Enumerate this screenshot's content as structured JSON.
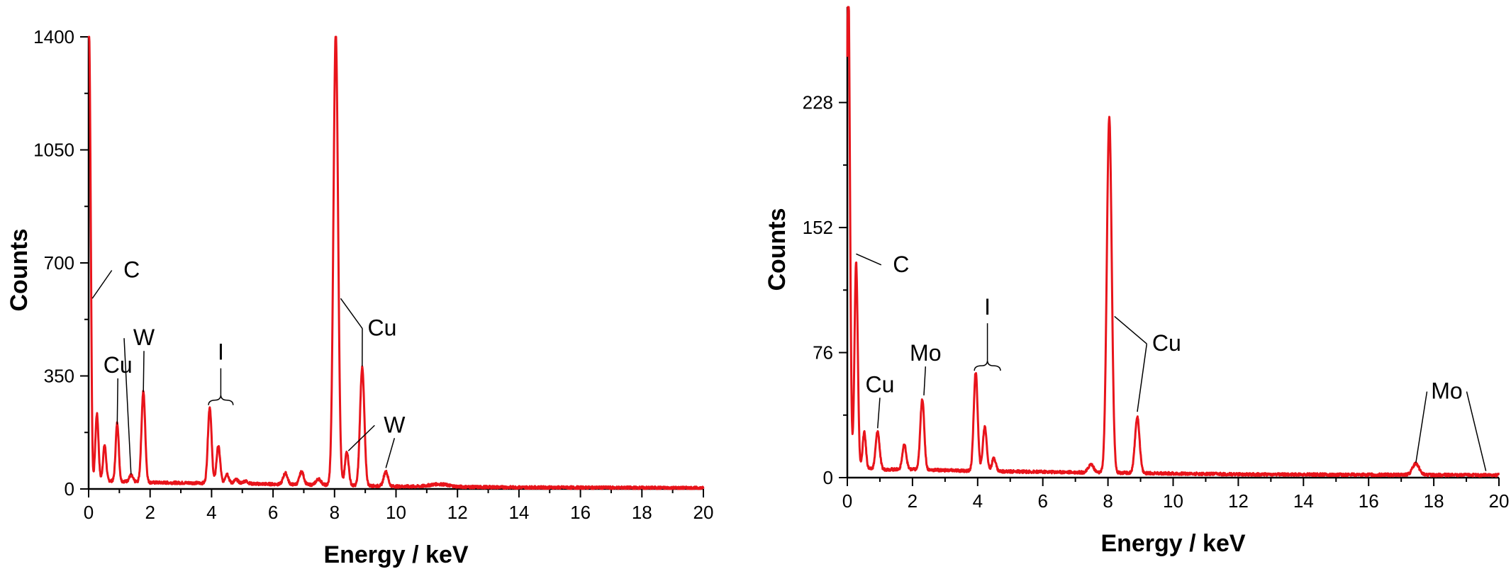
{
  "colors": {
    "spectrum": "#e8141b",
    "axes": "#000000"
  },
  "chart_data": [
    {
      "type": "line",
      "xlabel": "Energy / keV",
      "ylabel": "Counts",
      "xlim": [
        0,
        20
      ],
      "ylim": [
        0,
        1400
      ],
      "xticks": [
        "0",
        "2",
        "4",
        "6",
        "8",
        "10",
        "12",
        "14",
        "16",
        "18",
        "20"
      ],
      "yticks": [
        "0",
        "350",
        "700",
        "1050",
        "1400"
      ],
      "grid": false,
      "series": [
        {
          "peaks": [
            {
              "x": 0.0,
              "y": 1240,
              "w": 0.04
            },
            {
              "x": 0.06,
              "y": 560,
              "w": 0.035
            },
            {
              "x": 0.27,
              "y": 205,
              "w": 0.05
            },
            {
              "x": 0.52,
              "y": 110,
              "w": 0.05
            },
            {
              "x": 0.93,
              "y": 180,
              "w": 0.05
            },
            {
              "x": 1.38,
              "y": 20,
              "w": 0.06
            },
            {
              "x": 1.78,
              "y": 280,
              "w": 0.06
            },
            {
              "x": 3.94,
              "y": 235,
              "w": 0.06
            },
            {
              "x": 4.22,
              "y": 115,
              "w": 0.06
            },
            {
              "x": 4.5,
              "y": 30,
              "w": 0.06
            },
            {
              "x": 4.8,
              "y": 12,
              "w": 0.07
            },
            {
              "x": 5.1,
              "y": 8,
              "w": 0.08
            },
            {
              "x": 6.4,
              "y": 35,
              "w": 0.07
            },
            {
              "x": 6.93,
              "y": 40,
              "w": 0.07
            },
            {
              "x": 7.48,
              "y": 18,
              "w": 0.08
            },
            {
              "x": 8.04,
              "y": 1400,
              "w": 0.075
            },
            {
              "x": 8.4,
              "y": 105,
              "w": 0.06
            },
            {
              "x": 8.9,
              "y": 365,
              "w": 0.07
            },
            {
              "x": 9.67,
              "y": 45,
              "w": 0.07
            },
            {
              "x": 11.4,
              "y": 8,
              "w": 0.3
            }
          ],
          "baseline": [
            {
              "x": 0,
              "y": 28
            },
            {
              "x": 1,
              "y": 24
            },
            {
              "x": 2,
              "y": 20
            },
            {
              "x": 4,
              "y": 18
            },
            {
              "x": 6,
              "y": 15
            },
            {
              "x": 8,
              "y": 12
            },
            {
              "x": 10,
              "y": 8
            },
            {
              "x": 14,
              "y": 5
            },
            {
              "x": 20,
              "y": 3
            }
          ]
        }
      ],
      "annotations": [
        {
          "text": "C",
          "point": {
            "x": 0.12,
            "y": 590
          },
          "label": {
            "x": 1.4,
            "y": 655
          }
        },
        {
          "text": "Cu",
          "point": {
            "x": 0.93,
            "y": 200
          },
          "label": {
            "x": 0.95,
            "y": 360
          }
        },
        {
          "text": "W",
          "point": {
            "x": 1.38,
            "y": 45
          },
          "label": {
            "x": 1.8,
            "y": 445
          }
        },
        {
          "text": "W",
          "point": {
            "x": 1.78,
            "y": 300
          },
          "label": null
        },
        {
          "text": "I",
          "point": {
            "x": 4.3,
            "y": 275
          },
          "label": {
            "x": 4.3,
            "y": 400
          },
          "brace": [
            3.9,
            4.7
          ]
        },
        {
          "text": "Cu",
          "point": {
            "x": 8.2,
            "y": 590
          },
          "label": {
            "x": 9.55,
            "y": 475
          }
        },
        {
          "text": "Cu",
          "point": {
            "x": 8.9,
            "y": 380
          },
          "label": null
        },
        {
          "text": "W",
          "point": {
            "x": 8.45,
            "y": 118
          },
          "label": {
            "x": 9.95,
            "y": 175
          }
        },
        {
          "text": "W",
          "point": {
            "x": 9.67,
            "y": 65
          },
          "label": null
        }
      ]
    },
    {
      "type": "line",
      "xlabel": "Energy / keV",
      "ylabel": "Counts",
      "xlim": [
        0,
        20
      ],
      "ylim": [
        0,
        286
      ],
      "xticks": [
        "0",
        "2",
        "4",
        "6",
        "8",
        "10",
        "12",
        "14",
        "16",
        "18",
        "20"
      ],
      "yticks": [
        "0",
        "76",
        "152",
        "228"
      ],
      "grid": false,
      "series": [
        {
          "peaks": [
            {
              "x": 0.03,
              "y": 300,
              "w": 0.05
            },
            {
              "x": 0.27,
              "y": 125,
              "w": 0.05
            },
            {
              "x": 0.52,
              "y": 22,
              "w": 0.05
            },
            {
              "x": 0.93,
              "y": 23,
              "w": 0.06
            },
            {
              "x": 1.75,
              "y": 15,
              "w": 0.06
            },
            {
              "x": 2.3,
              "y": 43,
              "w": 0.06
            },
            {
              "x": 3.94,
              "y": 60,
              "w": 0.06
            },
            {
              "x": 4.22,
              "y": 27,
              "w": 0.06
            },
            {
              "x": 4.5,
              "y": 8,
              "w": 0.06
            },
            {
              "x": 7.48,
              "y": 5,
              "w": 0.08
            },
            {
              "x": 8.04,
              "y": 216,
              "w": 0.075
            },
            {
              "x": 8.9,
              "y": 34,
              "w": 0.07
            },
            {
              "x": 17.45,
              "y": 7,
              "w": 0.1
            }
          ],
          "baseline": [
            {
              "x": 0,
              "y": 6
            },
            {
              "x": 1,
              "y": 5
            },
            {
              "x": 2,
              "y": 5
            },
            {
              "x": 4,
              "y": 4
            },
            {
              "x": 8,
              "y": 3
            },
            {
              "x": 12,
              "y": 2
            },
            {
              "x": 20,
              "y": 1.5
            }
          ]
        }
      ],
      "annotations": [
        {
          "text": "C",
          "point": {
            "x": 0.27,
            "y": 136
          },
          "label": {
            "x": 1.65,
            "y": 125
          }
        },
        {
          "text": "Cu",
          "point": {
            "x": 0.93,
            "y": 30
          },
          "label": {
            "x": 1.0,
            "y": 52
          }
        },
        {
          "text": "Mo",
          "point": {
            "x": 2.35,
            "y": 50
          },
          "label": {
            "x": 2.4,
            "y": 71
          }
        },
        {
          "text": "I",
          "point": {
            "x": 4.3,
            "y": 68
          },
          "label": {
            "x": 4.3,
            "y": 99
          },
          "brace": [
            3.9,
            4.7
          ]
        },
        {
          "text": "Cu",
          "point": {
            "x": 8.2,
            "y": 98
          },
          "label": {
            "x": 9.8,
            "y": 77
          }
        },
        {
          "text": "Cu",
          "point": {
            "x": 8.9,
            "y": 40
          },
          "label": null
        },
        {
          "text": "Mo",
          "point": {
            "x": 17.45,
            "y": 9
          },
          "label": {
            "x": 18.4,
            "y": 48
          }
        },
        {
          "text": "Mo",
          "point": {
            "x": 19.6,
            "y": 4
          },
          "label": null
        }
      ]
    }
  ]
}
